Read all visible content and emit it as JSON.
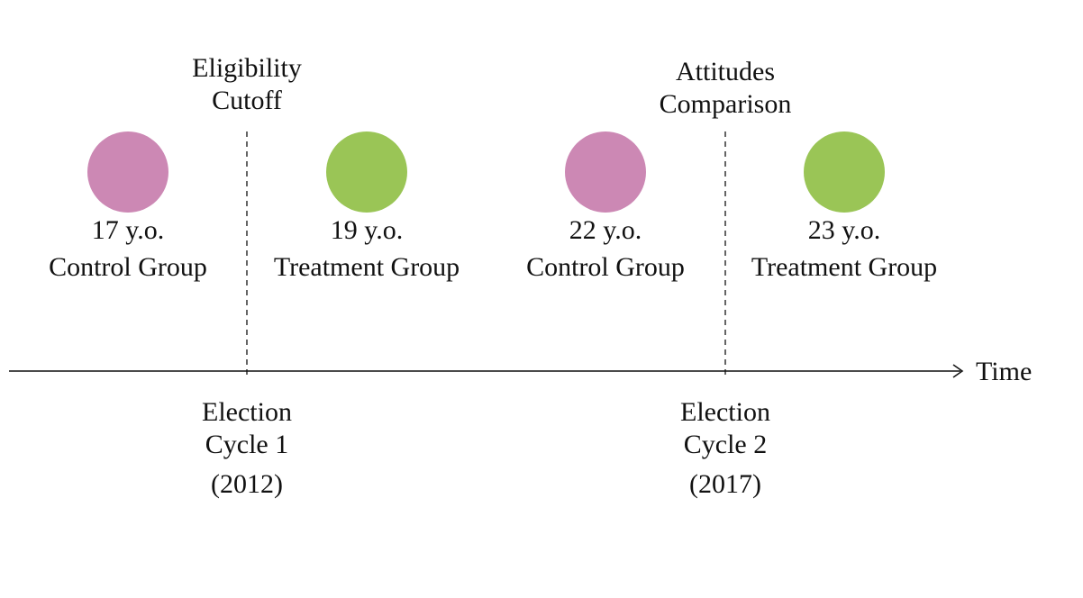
{
  "colors": {
    "control": "#cc88b4",
    "treatment": "#9ac556",
    "line": "#111111"
  },
  "axis": {
    "label": "Time"
  },
  "markers": [
    {
      "top_lines": [
        "Eligibility",
        "Cutoff"
      ],
      "bottom_lines": [
        "Election",
        "Cycle 1",
        "(2012)"
      ]
    },
    {
      "top_lines": [
        "Attitudes",
        "Comparison"
      ],
      "bottom_lines": [
        "Election",
        "Cycle 2",
        "(2017)"
      ]
    }
  ],
  "groups": [
    {
      "age": "17 y.o.",
      "name": "Control Group",
      "kind": "control"
    },
    {
      "age": "19 y.o.",
      "name": "Treatment Group",
      "kind": "treatment"
    },
    {
      "age": "22 y.o.",
      "name": "Control Group",
      "kind": "control"
    },
    {
      "age": "23 y.o.",
      "name": "Treatment Group",
      "kind": "treatment"
    }
  ]
}
